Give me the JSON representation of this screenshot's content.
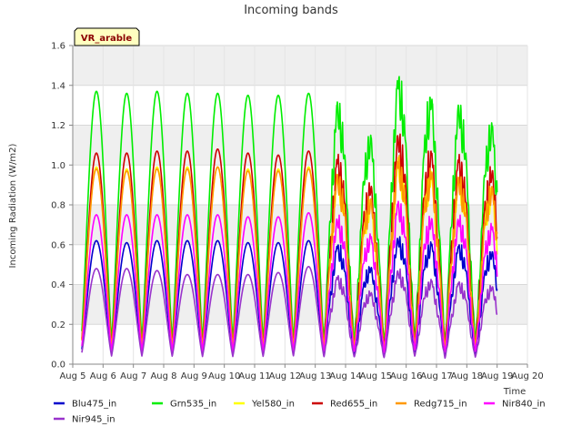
{
  "chart_data": {
    "type": "line",
    "title": "Incoming bands",
    "xlabel": "Time",
    "ylabel": "Incoming Radiation (W/m2)",
    "badge": "VR_arable",
    "xlim": [
      5,
      20
    ],
    "ylim": [
      0.0,
      1.6
    ],
    "x_ticks": [
      "Aug 5",
      "Aug 6",
      "Aug 7",
      "Aug 8",
      "Aug 9",
      "Aug 10",
      "Aug 11",
      "Aug 12",
      "Aug 13",
      "Aug 14",
      "Aug 15",
      "Aug 16",
      "Aug 17",
      "Aug 18",
      "Aug 19",
      "Aug 20"
    ],
    "y_ticks": [
      "0.0",
      "0.2",
      "0.4",
      "0.6",
      "0.8",
      "1.0",
      "1.2",
      "1.4",
      "1.6"
    ],
    "grid": true,
    "legend_position": "bottom",
    "day_noon": [
      5.78,
      6.78,
      7.78,
      8.78,
      9.78,
      10.78,
      11.78,
      12.78,
      13.78,
      14.78,
      15.78,
      16.78,
      17.78,
      18.78
    ],
    "series": [
      {
        "name": "Blu475_in",
        "color": "#0000cc",
        "peaks": [
          0.62,
          0.61,
          0.62,
          0.62,
          0.62,
          0.61,
          0.61,
          0.62,
          0.61,
          0.5,
          0.65,
          0.62,
          0.61,
          0.58
        ]
      },
      {
        "name": "Grn535_in",
        "color": "#00ee00",
        "peaks": [
          1.37,
          1.36,
          1.37,
          1.36,
          1.36,
          1.35,
          1.35,
          1.36,
          1.34,
          1.17,
          1.47,
          1.37,
          1.33,
          1.23
        ]
      },
      {
        "name": "Yel580_in",
        "color": "#ffff00",
        "peaks": [
          0.99,
          0.98,
          0.99,
          0.99,
          0.99,
          0.98,
          0.98,
          0.99,
          0.98,
          0.84,
          1.05,
          0.99,
          0.97,
          0.9
        ]
      },
      {
        "name": "Red655_in",
        "color": "#cc0000",
        "peaks": [
          1.06,
          1.06,
          1.07,
          1.07,
          1.08,
          1.06,
          1.05,
          1.07,
          1.06,
          0.92,
          1.18,
          1.09,
          1.06,
          1.0
        ]
      },
      {
        "name": "Redg715_in",
        "color": "#ff9900",
        "peaks": [
          0.98,
          0.97,
          0.98,
          0.98,
          0.99,
          0.97,
          0.97,
          0.98,
          0.97,
          0.85,
          1.05,
          0.99,
          0.96,
          0.91
        ]
      },
      {
        "name": "Nir840_in",
        "color": "#ff00ff",
        "peaks": [
          0.75,
          0.75,
          0.75,
          0.75,
          0.75,
          0.74,
          0.74,
          0.76,
          0.75,
          0.66,
          0.83,
          0.75,
          0.75,
          0.71
        ]
      },
      {
        "name": "Nir945_in",
        "color": "#9933cc",
        "peaks": [
          0.48,
          0.48,
          0.47,
          0.45,
          0.45,
          0.45,
          0.46,
          0.49,
          0.45,
          0.37,
          0.48,
          0.43,
          0.42,
          0.4
        ]
      }
    ]
  }
}
